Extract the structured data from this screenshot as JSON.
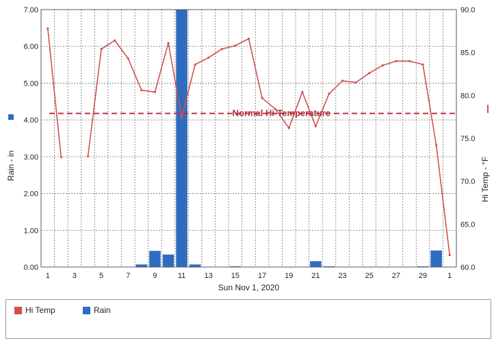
{
  "chart_data": {
    "type": "bar+line",
    "xlabel": "Sun Nov 1, 2020",
    "y_left_label": "Rain - in",
    "y_right_label": "Hi Temp - °F",
    "x_ticks": [
      "1",
      "3",
      "5",
      "7",
      "9",
      "11",
      "13",
      "15",
      "17",
      "19",
      "21",
      "23",
      "25",
      "27",
      "29",
      "1"
    ],
    "y_left_ticks": [
      "0.00",
      "1.00",
      "2.00",
      "3.00",
      "4.00",
      "5.00",
      "6.00",
      "7.00"
    ],
    "y_right_ticks": [
      "60.0",
      "65.0",
      "70.0",
      "75.0",
      "80.0",
      "85.0",
      "90.0"
    ],
    "y_left_range": [
      0,
      7
    ],
    "y_right_range": [
      60,
      90
    ],
    "grid": true,
    "legend_position": "bottom-left",
    "normal_hi_label": "Normal Hi-Temperature",
    "normal_hi_value": 77.9,
    "colors": {
      "hi_temp": "#d05050",
      "rain": "#2f6cc0",
      "normal": "#c03040",
      "grid": "#6e6e6e"
    },
    "series": [
      {
        "name": "Hi Temp",
        "type": "line",
        "segments": [
          {
            "x": [
              1.5,
              2.5
            ],
            "y": [
              87.8,
              72.8
            ]
          },
          {
            "x": [
              4.5,
              5.5,
              6.5,
              7.5,
              8.5,
              9.5,
              10.5,
              11.5,
              12.5,
              13.5,
              14.5,
              15.5,
              16.5,
              17.5,
              18.5,
              19.5,
              20.5,
              21.5,
              22.5,
              23.5,
              24.5,
              25.5,
              26.5,
              27.5,
              28.5,
              29.5,
              30.5,
              31.5
            ],
            "y": [
              72.9,
              85.4,
              86.4,
              84.3,
              80.6,
              80.4,
              86.1,
              77.4,
              83.6,
              84.4,
              85.4,
              85.8,
              86.6,
              79.7,
              78.4,
              76.2,
              80.4,
              76.4,
              80.2,
              81.7,
              81.5,
              82.6,
              83.5,
              84.0,
              84.0,
              83.6,
              74.2,
              61.4
            ]
          }
        ]
      },
      {
        "name": "Rain",
        "type": "bar",
        "x": [
          8.5,
          9.5,
          10.5,
          11.5,
          12.5,
          15.5,
          21.5,
          22.5,
          29.5,
          30.5
        ],
        "values": [
          0.07,
          0.44,
          0.34,
          7.0,
          0.07,
          0.02,
          0.16,
          0.02,
          0.02,
          0.45
        ]
      }
    ]
  },
  "legend": {
    "hi_temp": "Hi Temp",
    "rain": "Rain"
  }
}
